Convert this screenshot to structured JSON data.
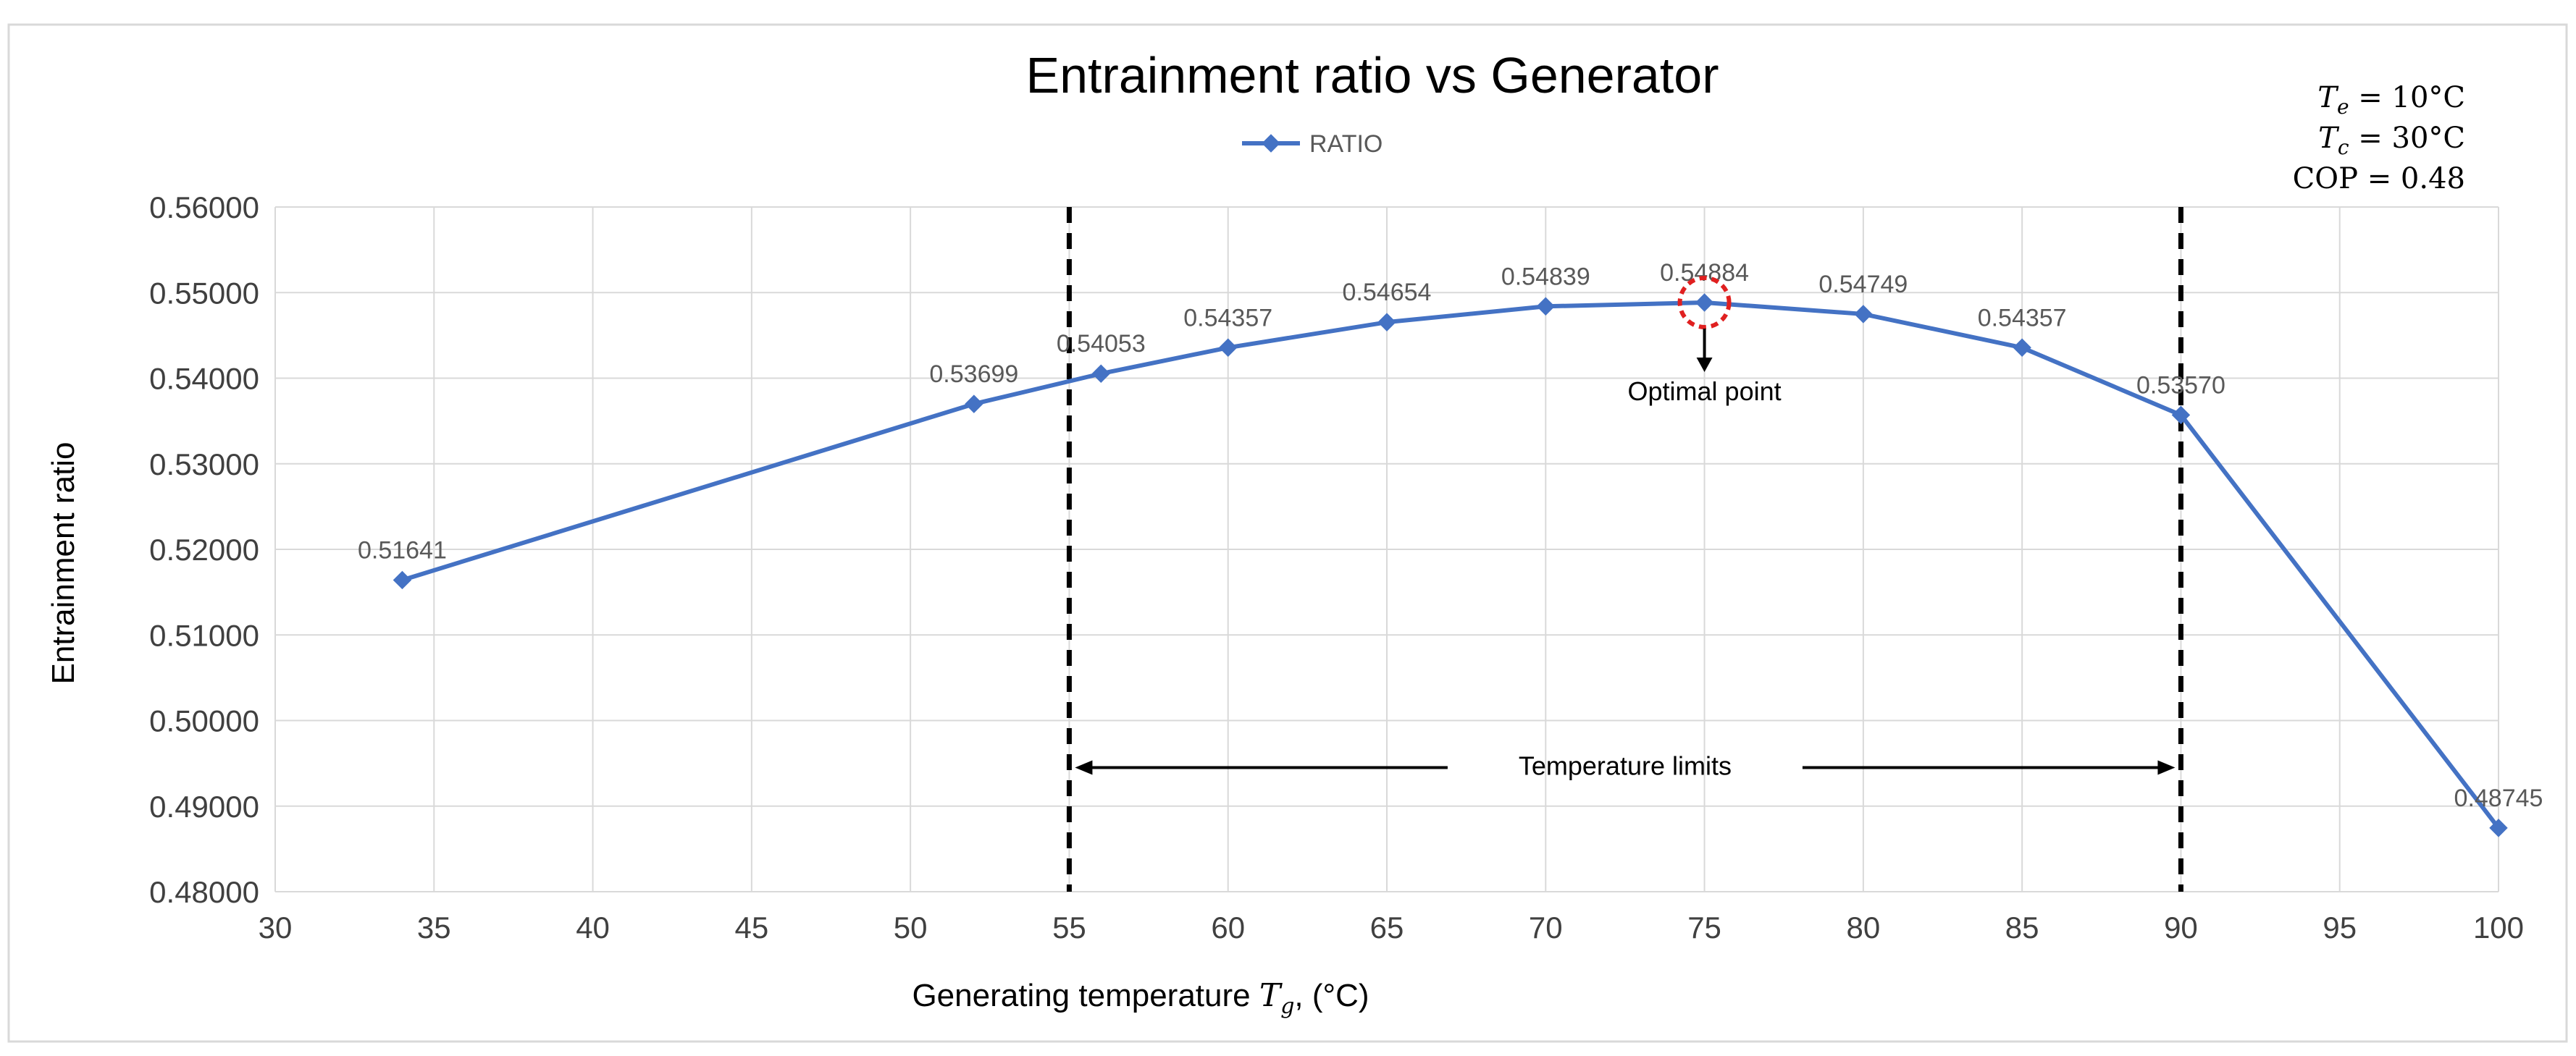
{
  "chart_data": {
    "type": "line",
    "title": "Entrainment ratio vs Generator",
    "legend": {
      "label": "RATIO",
      "placement": "top-center"
    },
    "xlabel": "Generating temperature",
    "xlabel_symbol": "T",
    "xlabel_symbol_sub": "g",
    "xlabel_unit": ", (°C)",
    "ylabel": "Entrainment ratio",
    "xlim": [
      30,
      100
    ],
    "ylim": [
      0.48,
      0.56
    ],
    "x_ticks": [
      30,
      35,
      40,
      45,
      50,
      55,
      60,
      65,
      70,
      75,
      80,
      85,
      90,
      95,
      100
    ],
    "y_ticks": [
      0.48,
      0.49,
      0.5,
      0.51,
      0.52,
      0.53,
      0.54,
      0.55,
      0.56
    ],
    "y_tick_decimals": 5,
    "grid": true,
    "series": [
      {
        "name": "RATIO",
        "color": "#4472c4",
        "x": [
          34,
          52,
          56,
          60,
          65,
          70,
          75,
          80,
          85,
          90,
          100
        ],
        "values": [
          0.51641,
          0.53699,
          0.54053,
          0.54357,
          0.54654,
          0.54839,
          0.54884,
          0.54749,
          0.54357,
          0.5357,
          0.48745
        ],
        "labels": [
          "0.51641",
          "0.53699",
          "0.54053",
          "0.54357",
          "0.54654",
          "0.54839",
          "0.54884",
          "0.54749",
          "0.54357",
          "0.53570",
          "0.48745"
        ]
      }
    ],
    "limit_lines": [
      55,
      90
    ],
    "range_annotation": {
      "text": "Temperature limits",
      "from": 55,
      "to": 90,
      "y": 0.4945
    },
    "optimal_point": {
      "text": "Optimal point",
      "x": 75,
      "y": 0.54884,
      "marker_color": "#e02020"
    },
    "conditions": [
      {
        "symbol": "T",
        "sub": "e",
        "text": " = 10°C"
      },
      {
        "symbol": "T",
        "sub": "c",
        "text": " = 30°C"
      },
      {
        "symbol": "",
        "sub": "",
        "text": "COP = 0.48"
      }
    ]
  }
}
